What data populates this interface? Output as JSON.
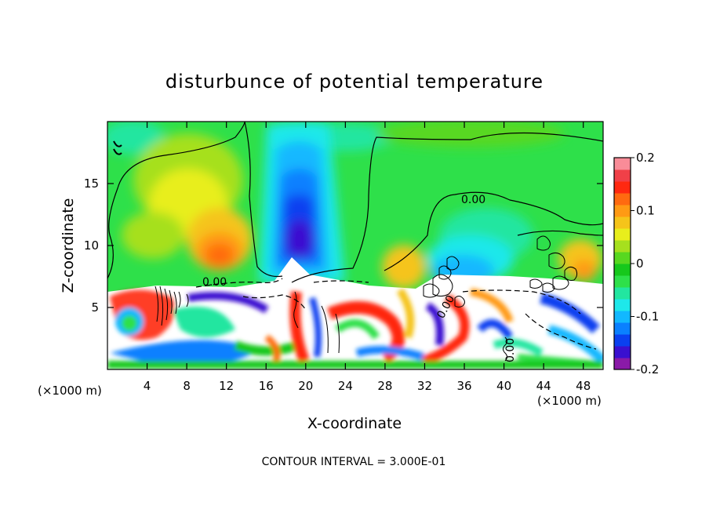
{
  "chart_data": {
    "type": "heatmap",
    "title": "disturbunce of potential temperature",
    "xlabel": "X-coordinate",
    "ylabel": "Z-coordinate",
    "x_unit": "(×1000 m)",
    "xlim": [
      0,
      50
    ],
    "ylim": [
      0,
      20
    ],
    "x_ticks": [
      4,
      8,
      12,
      16,
      20,
      24,
      28,
      32,
      36,
      40,
      44,
      48
    ],
    "y_ticks": [
      5,
      10,
      15
    ],
    "colorbar": {
      "range": [
        -0.2,
        0.2
      ],
      "tick_labels": [
        "0.2",
        "0.1",
        "0",
        "-0.1",
        "-0.2"
      ],
      "tick_values": [
        0.2,
        0.1,
        0,
        -0.1,
        -0.2
      ],
      "colors": [
        "#8a1aa8",
        "#3a10d0",
        "#0a40f0",
        "#0a80ff",
        "#12b8ff",
        "#1ee8ea",
        "#22e6a0",
        "#2ee04a",
        "#16c81c",
        "#58d820",
        "#a6e01e",
        "#e8ee1c",
        "#f5c41a",
        "#ff9a14",
        "#ff6a10",
        "#ff2810",
        "#f04048",
        "#f98c98"
      ]
    },
    "contour_labels": [
      "0.00",
      "0.00",
      "0.00",
      "0.00"
    ],
    "contour_interval": "CONTOUR INTERVAL = 3.000E-01",
    "features": [
      {
        "name": "warm-anomaly-left",
        "x": 10,
        "z": 10,
        "value": 0.12
      },
      {
        "name": "warm-anomaly-upper-left",
        "x": 9,
        "z": 13,
        "value": 0.07
      },
      {
        "name": "cold-column",
        "x": 19,
        "z": 11,
        "value": -0.19
      },
      {
        "name": "cold-plume-right",
        "x": 35,
        "z": 8,
        "value": -0.08
      },
      {
        "name": "warm-patch-x28",
        "x": 28,
        "z": 7.5,
        "value": 0.08
      },
      {
        "name": "warm-patch-x47",
        "x": 47,
        "z": 9,
        "value": 0.04
      }
    ]
  }
}
